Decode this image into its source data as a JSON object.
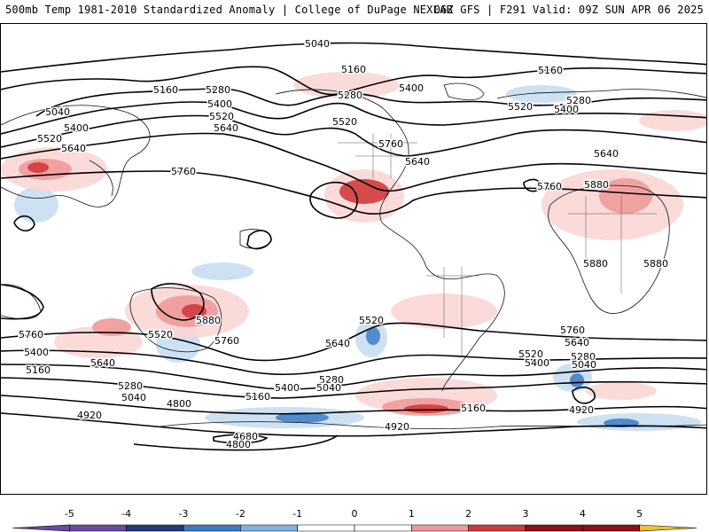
{
  "header": {
    "left": "500mb Temp 1981-2010 Standardized Anomaly | College of DuPage NEXLAB",
    "right": "06Z GFS | F291 Valid: 09Z SUN APR 06 2025"
  },
  "colorbar": {
    "min": -5,
    "max": 5,
    "tick_labels": [
      "-5",
      "-4",
      "-3",
      "-2",
      "-1",
      "0",
      "1",
      "2",
      "3",
      "4",
      "5"
    ],
    "colors": [
      "#6a4aa0",
      "#223a78",
      "#3b7cc4",
      "#7fb2e0",
      "#c8def2",
      "#ffffff",
      "#fbd6d6",
      "#ef9a9a",
      "#d13a3a",
      "#8c1016",
      "#f0c030"
    ]
  },
  "contours": [
    {
      "label": "5040",
      "label_at": [
        357,
        48
      ]
    },
    {
      "label": "5160",
      "label_at": [
        398,
        77
      ]
    },
    {
      "label": "5160",
      "label_at": [
        620,
        78
      ]
    },
    {
      "label": "5160",
      "label_at": [
        186,
        100
      ]
    },
    {
      "label": "5280",
      "label_at": [
        245,
        100
      ]
    },
    {
      "label": "5400",
      "label_at": [
        247,
        116
      ]
    },
    {
      "label": "5520",
      "label_at": [
        249,
        130
      ]
    },
    {
      "label": "5640",
      "label_at": [
        254,
        143
      ]
    },
    {
      "label": "5040",
      "label_at": [
        64,
        125
      ]
    },
    {
      "label": "5400",
      "label_at": [
        85,
        143
      ]
    },
    {
      "label": "5520",
      "label_at": [
        55,
        155
      ]
    },
    {
      "label": "5640",
      "label_at": [
        82,
        166
      ]
    },
    {
      "label": "5760",
      "label_at": [
        206,
        192
      ]
    },
    {
      "label": "5280",
      "label_at": [
        394,
        106
      ]
    },
    {
      "label": "5400",
      "label_at": [
        463,
        98
      ]
    },
    {
      "label": "5520",
      "label_at": [
        388,
        136
      ]
    },
    {
      "label": "5760",
      "label_at": [
        440,
        161
      ]
    },
    {
      "label": "5640",
      "label_at": [
        470,
        181
      ]
    },
    {
      "label": "5280",
      "label_at": [
        652,
        112
      ]
    },
    {
      "label": "5520",
      "label_at": [
        586,
        119
      ]
    },
    {
      "label": "5400",
      "label_at": [
        638,
        122
      ]
    },
    {
      "label": "5640",
      "label_at": [
        683,
        172
      ]
    },
    {
      "label": "5760",
      "label_at": [
        619,
        209
      ]
    },
    {
      "label": "5880",
      "label_at": [
        672,
        207
      ]
    },
    {
      "label": "5880",
      "label_at": [
        671,
        296
      ]
    },
    {
      "label": "5880",
      "label_at": [
        739,
        296
      ]
    },
    {
      "label": "5880",
      "label_at": [
        234,
        360
      ]
    },
    {
      "label": "5520",
      "label_at": [
        180,
        376
      ]
    },
    {
      "label": "5520",
      "label_at": [
        418,
        360
      ]
    },
    {
      "label": "5760",
      "label_at": [
        34,
        376
      ]
    },
    {
      "label": "5760",
      "label_at": [
        255,
        383
      ]
    },
    {
      "label": "5640",
      "label_at": [
        380,
        386
      ]
    },
    {
      "label": "5760",
      "label_at": [
        645,
        371
      ]
    },
    {
      "label": "5640",
      "label_at": [
        650,
        385
      ]
    },
    {
      "label": "5520",
      "label_at": [
        598,
        398
      ]
    },
    {
      "label": "5400",
      "label_at": [
        605,
        408
      ]
    },
    {
      "label": "5280",
      "label_at": [
        657,
        401
      ]
    },
    {
      "label": "5040",
      "label_at": [
        658,
        410
      ]
    },
    {
      "label": "5400",
      "label_at": [
        40,
        396
      ]
    },
    {
      "label": "5640",
      "label_at": [
        115,
        408
      ]
    },
    {
      "label": "5160",
      "label_at": [
        42,
        416
      ]
    },
    {
      "label": "5280",
      "label_at": [
        146,
        434
      ]
    },
    {
      "label": "5040",
      "label_at": [
        150,
        447
      ]
    },
    {
      "label": "5400",
      "label_at": [
        323,
        436
      ]
    },
    {
      "label": "5280",
      "label_at": [
        373,
        427
      ]
    },
    {
      "label": "5040",
      "label_at": [
        370,
        436
      ]
    },
    {
      "label": "5160",
      "label_at": [
        290,
        446
      ]
    },
    {
      "label": "5160",
      "label_at": [
        533,
        459
      ]
    },
    {
      "label": "4920",
      "label_at": [
        100,
        467
      ]
    },
    {
      "label": "4800",
      "label_at": [
        201,
        454
      ]
    },
    {
      "label": "4920",
      "label_at": [
        447,
        480
      ]
    },
    {
      "label": "4920",
      "label_at": [
        655,
        461
      ]
    },
    {
      "label": "4680",
      "label_at": [
        276,
        491
      ]
    },
    {
      "label": "4800",
      "label_at": [
        268,
        500
      ]
    }
  ]
}
